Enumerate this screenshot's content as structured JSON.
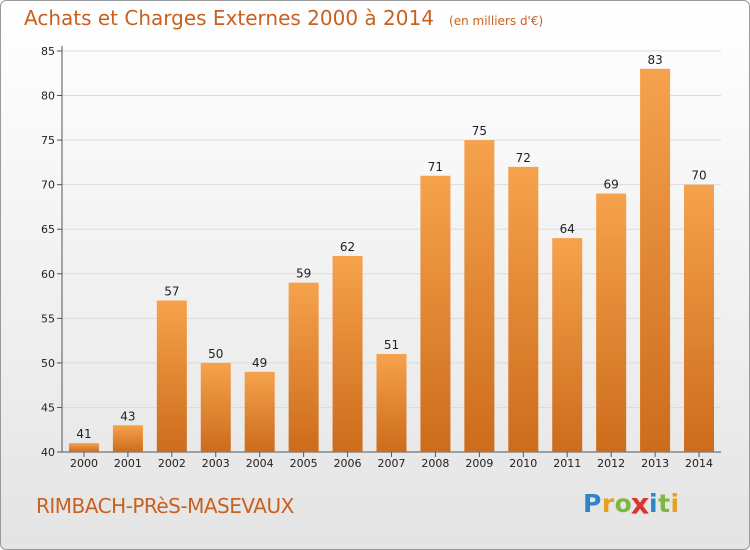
{
  "title": "Achats et Charges Externes 2000 à 2014",
  "unit_note": "(en milliers d'€)",
  "place_name": "RIMBACH-PRèS-MASEVAUX",
  "logo": {
    "text": "Proxiti",
    "letters": [
      {
        "ch": "P",
        "color": "#2e86c8"
      },
      {
        "ch": "r",
        "color": "#e6a11e"
      },
      {
        "ch": "o",
        "color": "#7fb83e"
      },
      {
        "ch": "x",
        "color": "#d9362e"
      },
      {
        "ch": "i",
        "color": "#2e86c8"
      },
      {
        "ch": "t",
        "color": "#7fb83e"
      },
      {
        "ch": "i",
        "color": "#e6a11e"
      }
    ]
  },
  "colors": {
    "bar_top": "#f6a24c",
    "bar_bottom": "#cc6c1c",
    "title": "#c8611f",
    "axis_text": "#222222",
    "grid": "#dcdcdc"
  },
  "chart_data": {
    "type": "bar",
    "categories": [
      "2000",
      "2001",
      "2002",
      "2003",
      "2004",
      "2005",
      "2006",
      "2007",
      "2008",
      "2009",
      "2010",
      "2011",
      "2012",
      "2013",
      "2014"
    ],
    "values": [
      41,
      43,
      57,
      50,
      49,
      59,
      62,
      51,
      71,
      75,
      72,
      64,
      69,
      83,
      70
    ],
    "ylim": [
      40,
      85
    ],
    "yticks": [
      40,
      45,
      50,
      55,
      60,
      65,
      70,
      75,
      80,
      85
    ],
    "grid": true,
    "data_labels": true
  }
}
